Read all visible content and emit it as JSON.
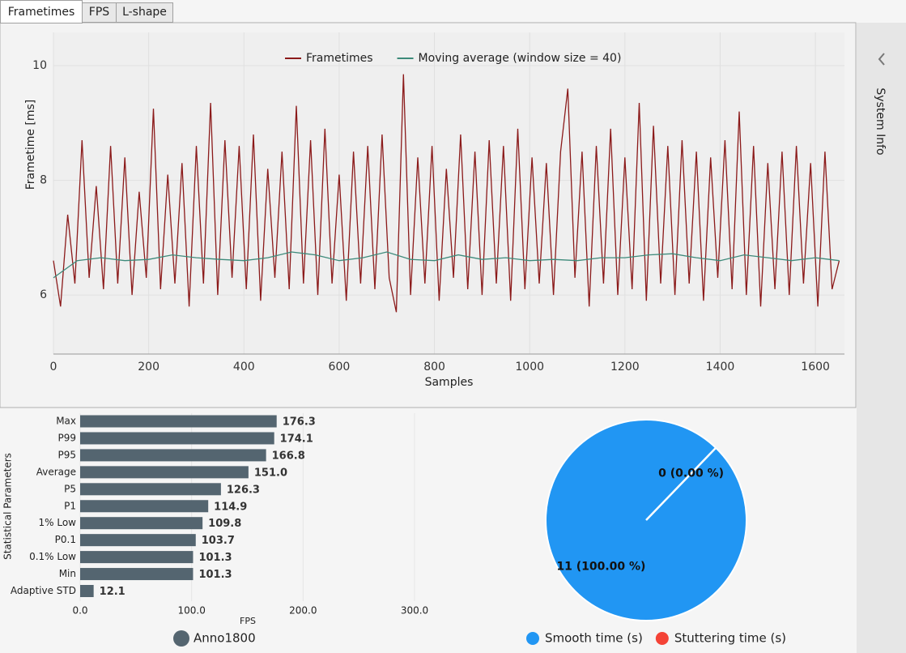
{
  "tabs": [
    "Frametimes",
    "FPS",
    "L-shape"
  ],
  "sidebar": "System Info",
  "chart_data": [
    {
      "type": "line",
      "xlabel": "Samples",
      "ylabel": "Frametime [ms]",
      "xlim": [
        0,
        1661
      ],
      "ylim": [
        4.97,
        10.58
      ],
      "xticks": [
        0,
        200,
        400,
        600,
        800,
        1000,
        1200,
        1400,
        1600
      ],
      "yticks": [
        6,
        8,
        10
      ],
      "grid": true,
      "series": [
        {
          "name": "Frametimes",
          "color": "#8b1a1a",
          "x": [
            0,
            15,
            30,
            45,
            60,
            75,
            90,
            105,
            120,
            135,
            150,
            165,
            180,
            195,
            210,
            225,
            240,
            255,
            270,
            285,
            300,
            315,
            330,
            345,
            360,
            375,
            390,
            405,
            420,
            435,
            450,
            465,
            480,
            495,
            510,
            525,
            540,
            555,
            570,
            585,
            600,
            615,
            630,
            645,
            660,
            675,
            690,
            705,
            720,
            735,
            750,
            765,
            780,
            795,
            810,
            825,
            840,
            855,
            870,
            885,
            900,
            915,
            930,
            945,
            960,
            975,
            990,
            1005,
            1020,
            1035,
            1050,
            1065,
            1080,
            1095,
            1110,
            1125,
            1140,
            1155,
            1170,
            1185,
            1200,
            1215,
            1230,
            1245,
            1260,
            1275,
            1290,
            1305,
            1320,
            1335,
            1350,
            1365,
            1380,
            1395,
            1410,
            1425,
            1440,
            1455,
            1470,
            1485,
            1500,
            1515,
            1530,
            1545,
            1560,
            1575,
            1590,
            1605,
            1620,
            1635,
            1650
          ],
          "values": [
            6.6,
            5.8,
            7.4,
            6.2,
            8.7,
            6.3,
            7.9,
            6.1,
            8.6,
            6.2,
            8.4,
            6.0,
            7.8,
            6.3,
            9.25,
            6.1,
            8.1,
            6.2,
            8.3,
            5.8,
            8.6,
            6.2,
            9.35,
            6.0,
            8.7,
            6.3,
            8.6,
            6.1,
            8.8,
            5.9,
            8.2,
            6.3,
            8.5,
            6.1,
            9.3,
            6.2,
            8.7,
            6.0,
            8.9,
            6.2,
            8.1,
            5.9,
            8.5,
            6.2,
            8.6,
            6.1,
            8.8,
            6.3,
            5.7,
            9.85,
            6.0,
            8.4,
            6.2,
            8.6,
            5.9,
            8.2,
            6.3,
            8.8,
            6.1,
            8.5,
            6.0,
            8.7,
            6.2,
            8.6,
            5.9,
            8.9,
            6.1,
            8.4,
            6.2,
            8.3,
            6.0,
            8.5,
            9.6,
            6.3,
            8.5,
            5.8,
            8.6,
            6.2,
            8.9,
            6.0,
            8.4,
            6.1,
            9.35,
            5.9,
            8.95,
            6.2,
            8.6,
            6.0,
            8.7,
            6.2,
            8.5,
            5.9,
            8.4,
            6.3,
            8.7,
            6.1,
            9.2,
            6.0,
            8.6,
            5.8,
            8.3,
            6.1,
            8.5,
            6.0,
            8.6,
            6.2,
            8.3,
            5.8,
            8.5,
            6.1,
            6.6
          ]
        },
        {
          "name": "Moving average (window size = 40)",
          "color": "#3d8a7a",
          "x": [
            0,
            50,
            100,
            150,
            200,
            250,
            300,
            350,
            400,
            450,
            500,
            550,
            600,
            650,
            700,
            750,
            800,
            850,
            900,
            950,
            1000,
            1050,
            1100,
            1150,
            1200,
            1250,
            1300,
            1350,
            1400,
            1450,
            1500,
            1550,
            1600,
            1650
          ],
          "values": [
            6.3,
            6.6,
            6.65,
            6.6,
            6.62,
            6.7,
            6.65,
            6.62,
            6.6,
            6.65,
            6.75,
            6.7,
            6.6,
            6.65,
            6.75,
            6.62,
            6.6,
            6.7,
            6.62,
            6.65,
            6.6,
            6.62,
            6.6,
            6.65,
            6.65,
            6.7,
            6.72,
            6.65,
            6.6,
            6.7,
            6.65,
            6.6,
            6.65,
            6.6
          ]
        }
      ]
    },
    {
      "type": "bar",
      "orientation": "horizontal",
      "xlabel": "FPS",
      "ylabel": "Statistical Parameters",
      "legend": "Anno1800",
      "color": "#546570",
      "categories": [
        "Max",
        "P99",
        "P95",
        "Average",
        "P5",
        "P1",
        "1% Low",
        "P0.1",
        "0.1% Low",
        "Min",
        "Adaptive STD"
      ],
      "values": [
        176.3,
        174.1,
        166.8,
        151.0,
        126.3,
        114.9,
        109.8,
        103.7,
        101.3,
        101.3,
        12.1
      ],
      "value_labels": [
        "176.3",
        "174.1",
        "166.8",
        "151.0",
        "126.3",
        "114.9",
        "109.8",
        "103.7",
        "101.3",
        "101.3",
        "12.1"
      ],
      "xlim": [
        0,
        300
      ],
      "xticks": [
        {
          "value": 0,
          "label": "0.0"
        },
        {
          "value": 100,
          "label": "100.0"
        },
        {
          "value": 200,
          "label": "200.0"
        },
        {
          "value": 300,
          "label": "300.0"
        }
      ]
    },
    {
      "type": "pie",
      "categories": [
        "Smooth time (s)",
        "Stuttering time (s)"
      ],
      "values": [
        11,
        0
      ],
      "value_labels": [
        "11 (100.00 %)",
        "0 (0.00 %)"
      ],
      "colors": [
        "#2196f3",
        "#f44336"
      ]
    }
  ]
}
